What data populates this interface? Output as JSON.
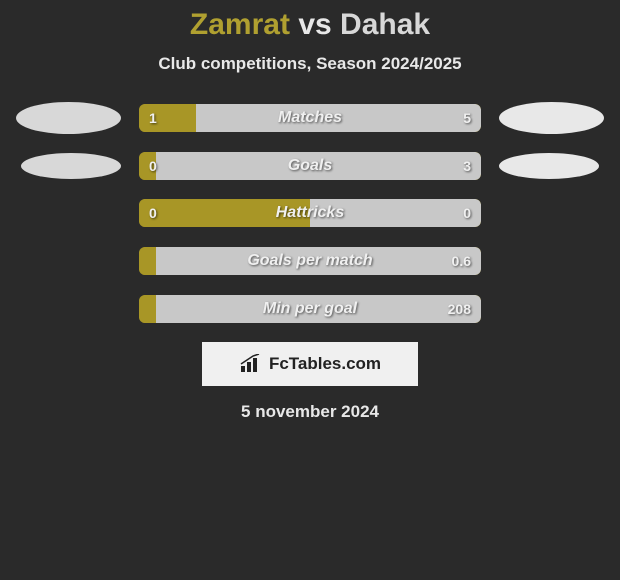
{
  "title": {
    "player1": "Zamrat",
    "vs": "vs",
    "player2": "Dahak"
  },
  "subtitle": "Club competitions, Season 2024/2025",
  "colors": {
    "player1_bar": "#a89626",
    "player2_bar": "#c8c8c8",
    "bar_bg": "#a89626",
    "oval_left": "#d8d8d8",
    "oval_right": "#e8e8e8"
  },
  "stats": [
    {
      "label": "Matches",
      "left_val": "1",
      "right_val": "5",
      "left_raw": 1,
      "right_raw": 5,
      "left_pct": 16.7,
      "right_pct": 83.3,
      "show_ovals": true,
      "oval_size": "lg"
    },
    {
      "label": "Goals",
      "left_val": "0",
      "right_val": "3",
      "left_raw": 0,
      "right_raw": 3,
      "left_pct": 5,
      "right_pct": 95,
      "show_ovals": true,
      "oval_size": "sm"
    },
    {
      "label": "Hattricks",
      "left_val": "0",
      "right_val": "0",
      "left_raw": 0,
      "right_raw": 0,
      "left_pct": 50,
      "right_pct": 50,
      "show_ovals": false
    },
    {
      "label": "Goals per match",
      "left_val": "",
      "right_val": "0.6",
      "left_raw": 0,
      "right_raw": 0.6,
      "left_pct": 5,
      "right_pct": 95,
      "show_ovals": false
    },
    {
      "label": "Min per goal",
      "left_val": "",
      "right_val": "208",
      "left_raw": 0,
      "right_raw": 208,
      "left_pct": 5,
      "right_pct": 95,
      "show_ovals": false
    }
  ],
  "brand": "FcTables.com",
  "date": "5 november 2024"
}
